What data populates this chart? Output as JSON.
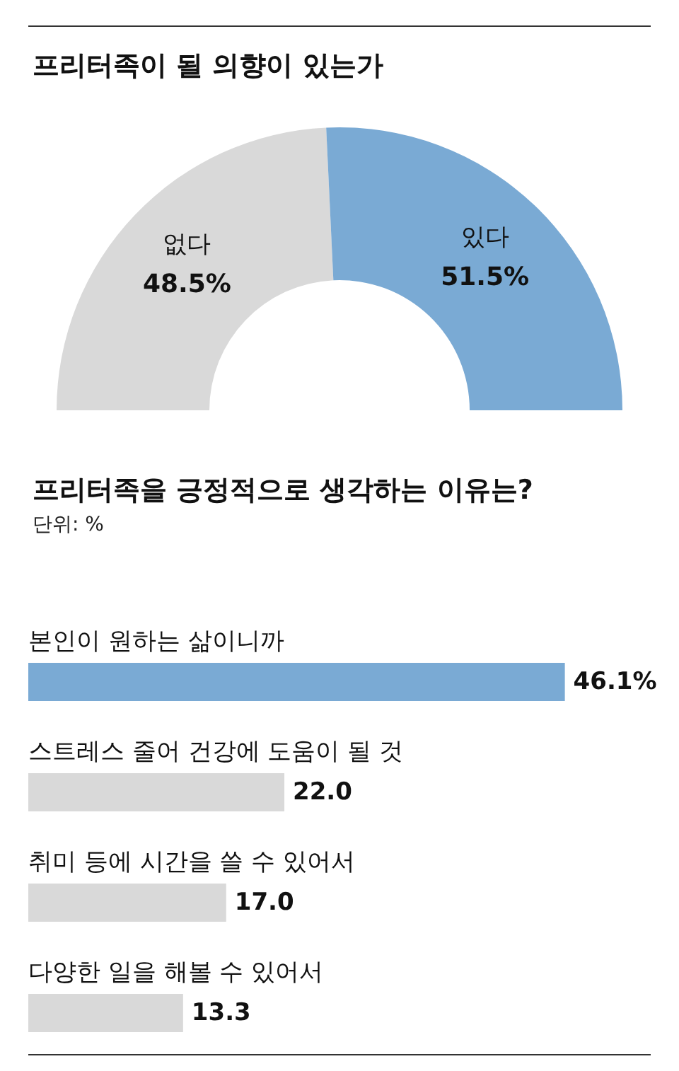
{
  "chart_data": [
    {
      "type": "donut",
      "title": "프리터족이 될 의향이 있는가",
      "categories": [
        "없다",
        "있다"
      ],
      "values": [
        48.5,
        51.5
      ],
      "colors": [
        "#d9d9d9",
        "#7aaad4"
      ],
      "value_labels": [
        "48.5%",
        "51.5%"
      ]
    },
    {
      "type": "bar",
      "orientation": "horizontal",
      "title": "프리터족을 긍정적으로 생각하는 이유는?",
      "subtitle": "단위: %",
      "categories": [
        "본인이 원하는 삶이니까",
        "스트레스 줄어 건강에 도움이 될 것",
        "취미 등에 시간을 쓸 수 있어서",
        "다양한 일을 해볼 수 있어서"
      ],
      "values": [
        46.1,
        22.0,
        17.0,
        13.3
      ],
      "colors": [
        "#7aaad4",
        "#d9d9d9",
        "#d9d9d9",
        "#d9d9d9"
      ],
      "value_labels": [
        "46.1%",
        "22.0",
        "17.0",
        "13.3"
      ]
    }
  ]
}
